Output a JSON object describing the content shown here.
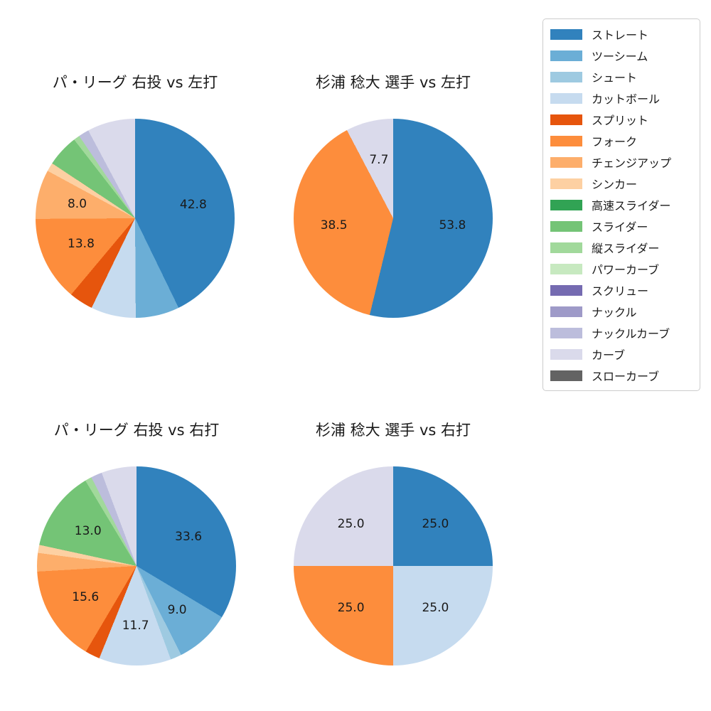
{
  "figure": {
    "background_color": "#ffffff",
    "text_color": "#1a1a1a"
  },
  "legend": {
    "position": "upper-right",
    "items": [
      {
        "label": "ストレート",
        "color": "#3182bd"
      },
      {
        "label": "ツーシーム",
        "color": "#6baed6"
      },
      {
        "label": "シュート",
        "color": "#9ecae1"
      },
      {
        "label": "カットボール",
        "color": "#c6dbef"
      },
      {
        "label": "スプリット",
        "color": "#e6550d"
      },
      {
        "label": "フォーク",
        "color": "#fd8d3c"
      },
      {
        "label": "チェンジアップ",
        "color": "#fdae6b"
      },
      {
        "label": "シンカー",
        "color": "#fdd0a2"
      },
      {
        "label": "高速スライダー",
        "color": "#31a354"
      },
      {
        "label": "スライダー",
        "color": "#74c476"
      },
      {
        "label": "縦スライダー",
        "color": "#a1d99b"
      },
      {
        "label": "パワーカーブ",
        "color": "#c7e9c0"
      },
      {
        "label": "スクリュー",
        "color": "#756bb1"
      },
      {
        "label": "ナックル",
        "color": "#9e9ac8"
      },
      {
        "label": "ナックルカーブ",
        "color": "#bcbddc"
      },
      {
        "label": "カーブ",
        "color": "#dadaeb"
      },
      {
        "label": "スローカーブ",
        "color": "#636363"
      }
    ]
  },
  "chart_data": [
    {
      "type": "pie",
      "title": "パ・リーグ 右投 vs 左打",
      "start_angle": "top",
      "direction": "clockwise",
      "slices": [
        {
          "name": "ストレート",
          "value": 42.8,
          "label": "42.8"
        },
        {
          "name": "ツーシーム",
          "value": 7.1
        },
        {
          "name": "カットボール",
          "value": 7.3
        },
        {
          "name": "スプリット",
          "value": 3.9
        },
        {
          "name": "フォーク",
          "value": 13.8,
          "label": "13.8"
        },
        {
          "name": "チェンジアップ",
          "value": 8.0,
          "label": "8.0"
        },
        {
          "name": "シンカー",
          "value": 1.4
        },
        {
          "name": "スライダー",
          "value": 5.2
        },
        {
          "name": "縦スライダー",
          "value": 1.0
        },
        {
          "name": "ナックルカーブ",
          "value": 1.7
        },
        {
          "name": "カーブ",
          "value": 7.8
        }
      ]
    },
    {
      "type": "pie",
      "title": "杉浦 稔大 選手 vs 左打",
      "start_angle": "top",
      "direction": "clockwise",
      "slices": [
        {
          "name": "ストレート",
          "value": 53.8,
          "label": "53.8"
        },
        {
          "name": "フォーク",
          "value": 38.5,
          "label": "38.5"
        },
        {
          "name": "カーブ",
          "value": 7.7,
          "label": "7.7"
        }
      ]
    },
    {
      "type": "pie",
      "title": "パ・リーグ 右投 vs 右打",
      "start_angle": "top",
      "direction": "clockwise",
      "slices": [
        {
          "name": "ストレート",
          "value": 33.6,
          "label": "33.6"
        },
        {
          "name": "ツーシーム",
          "value": 9.0,
          "label": "9.0"
        },
        {
          "name": "シュート",
          "value": 1.8
        },
        {
          "name": "カットボール",
          "value": 11.7,
          "label": "11.7"
        },
        {
          "name": "スプリット",
          "value": 2.4
        },
        {
          "name": "フォーク",
          "value": 15.6,
          "label": "15.6"
        },
        {
          "name": "チェンジアップ",
          "value": 3.0
        },
        {
          "name": "シンカー",
          "value": 1.3
        },
        {
          "name": "スライダー",
          "value": 13.0,
          "label": "13.0"
        },
        {
          "name": "縦スライダー",
          "value": 1.1
        },
        {
          "name": "ナックルカーブ",
          "value": 1.8
        },
        {
          "name": "カーブ",
          "value": 5.7
        }
      ]
    },
    {
      "type": "pie",
      "title": "杉浦 稔大 選手 vs 右打",
      "start_angle": "top",
      "direction": "clockwise",
      "slices": [
        {
          "name": "ストレート",
          "value": 25.0,
          "label": "25.0"
        },
        {
          "name": "カットボール",
          "value": 25.0,
          "label": "25.0"
        },
        {
          "name": "フォーク",
          "value": 25.0,
          "label": "25.0"
        },
        {
          "name": "カーブ",
          "value": 25.0,
          "label": "25.0"
        }
      ]
    }
  ]
}
